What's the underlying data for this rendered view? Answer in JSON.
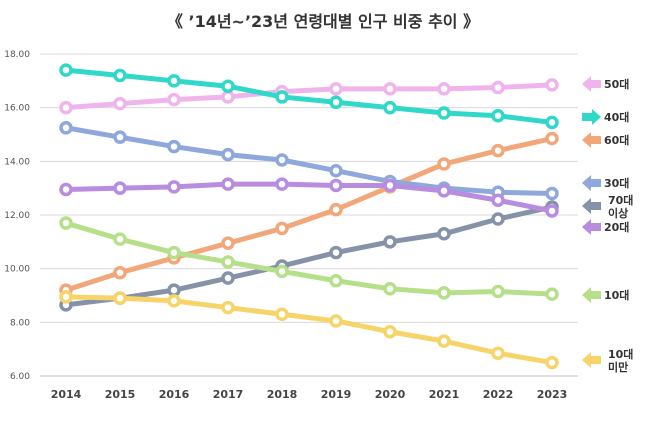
{
  "title": "《 ’14년~’23년 연령대별 인구 비중 추이 》",
  "chart_data": {
    "type": "line",
    "title": "《 ’14년~’23년 연령대별 인구 비중 추이 》",
    "xlabel": "",
    "ylabel": "",
    "x": [
      "2014",
      "2015",
      "2016",
      "2017",
      "2018",
      "2019",
      "2020",
      "2021",
      "2022",
      "2023"
    ],
    "ylim": [
      6.0,
      18.0
    ],
    "yticks": [
      "6.00",
      "8.00",
      "10.00",
      "12.00",
      "14.00",
      "16.00",
      "18.00"
    ],
    "grid": true,
    "series": [
      {
        "name": "50대",
        "color": "#f0b4ec",
        "arrow": "left",
        "values": [
          16.0,
          16.15,
          16.3,
          16.4,
          16.6,
          16.7,
          16.7,
          16.7,
          16.75,
          16.85
        ]
      },
      {
        "name": "40대",
        "color": "#2fd8c8",
        "arrow": "right",
        "values": [
          17.4,
          17.2,
          17.0,
          16.8,
          16.4,
          16.2,
          16.0,
          15.8,
          15.7,
          15.45
        ]
      },
      {
        "name": "60대",
        "color": "#f2a77a",
        "arrow": "left",
        "values": [
          9.2,
          9.85,
          10.4,
          10.95,
          11.5,
          12.2,
          13.05,
          13.9,
          14.4,
          14.85
        ]
      },
      {
        "name": "30대",
        "color": "#8fa8dc",
        "arrow": "left",
        "values": [
          15.25,
          14.9,
          14.55,
          14.25,
          14.05,
          13.65,
          13.25,
          13.0,
          12.85,
          12.8
        ]
      },
      {
        "name": "70대 이상",
        "color": "#8592a8",
        "arrow": "left",
        "values": [
          8.65,
          8.9,
          9.2,
          9.65,
          10.1,
          10.6,
          11.0,
          11.3,
          11.85,
          12.3
        ]
      },
      {
        "name": "20대",
        "color": "#b88de0",
        "arrow": "left",
        "values": [
          12.95,
          13.0,
          13.05,
          13.15,
          13.15,
          13.1,
          13.1,
          12.9,
          12.55,
          12.15
        ]
      },
      {
        "name": "10대",
        "color": "#b6df8a",
        "arrow": "left",
        "values": [
          11.7,
          11.1,
          10.6,
          10.25,
          9.9,
          9.55,
          9.25,
          9.1,
          9.15,
          9.05
        ]
      },
      {
        "name": "10대 미만",
        "color": "#f7d46a",
        "arrow": "left",
        "values": [
          8.95,
          8.9,
          8.8,
          8.55,
          8.3,
          8.05,
          7.65,
          7.3,
          6.85,
          6.5
        ]
      }
    ]
  }
}
